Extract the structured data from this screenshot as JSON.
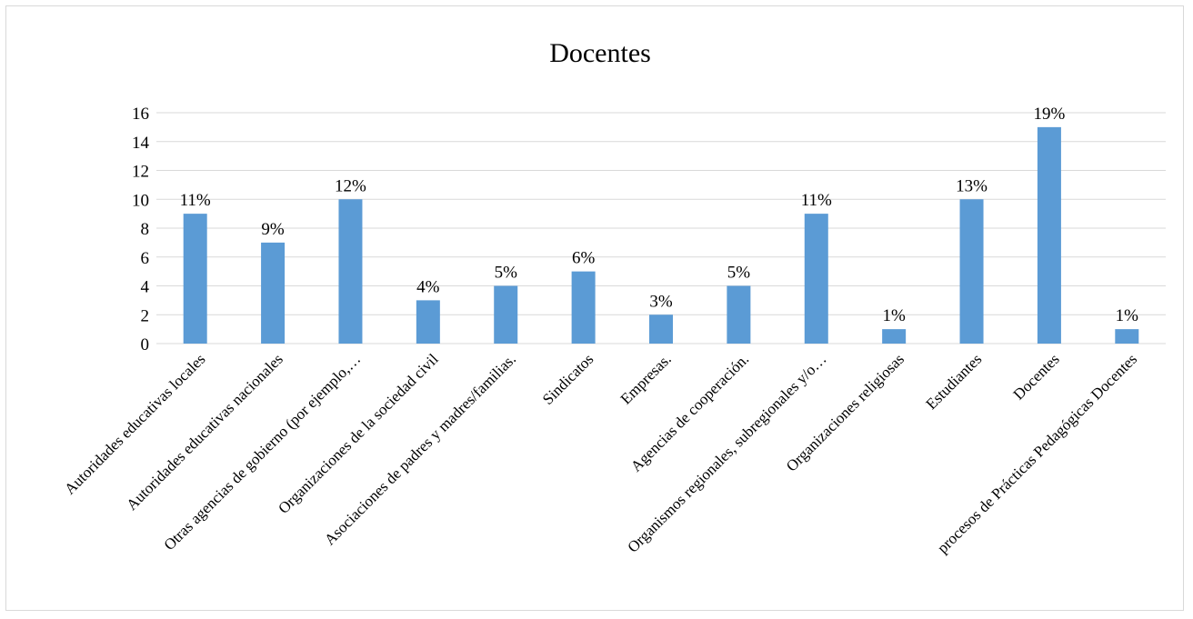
{
  "chart_data": {
    "type": "bar",
    "title": "Docentes",
    "xlabel": "",
    "ylabel": "",
    "ylim": [
      0,
      16
    ],
    "yticks": [
      0,
      2,
      4,
      6,
      8,
      10,
      12,
      14,
      16
    ],
    "grid": true,
    "bar_color": "#5b9bd5",
    "categories": [
      "Autoridades educativas locales",
      "Autoridades educativas nacionales",
      "Otras agencias de gobierno (por ejemplo,…",
      "Organizaciones de la sociedad civil",
      "Asociaciones de padres y madres/familias.",
      "Sindicatos",
      "Empresas.",
      "Agencias de cooperación.",
      "Organismos regionales, subregionales y/o…",
      "Organizaciones religiosas",
      "Estudiantes",
      "Docentes",
      "procesos de Prácticas Pedagógicas Docentes"
    ],
    "values": [
      9,
      7,
      10,
      3,
      4,
      5,
      2,
      4,
      9,
      1,
      10,
      15,
      1
    ],
    "data_labels": [
      "11%",
      "9%",
      "12%",
      "4%",
      "5%",
      "6%",
      "3%",
      "5%",
      "11%",
      "1%",
      "13%",
      "19%",
      "1%"
    ]
  }
}
